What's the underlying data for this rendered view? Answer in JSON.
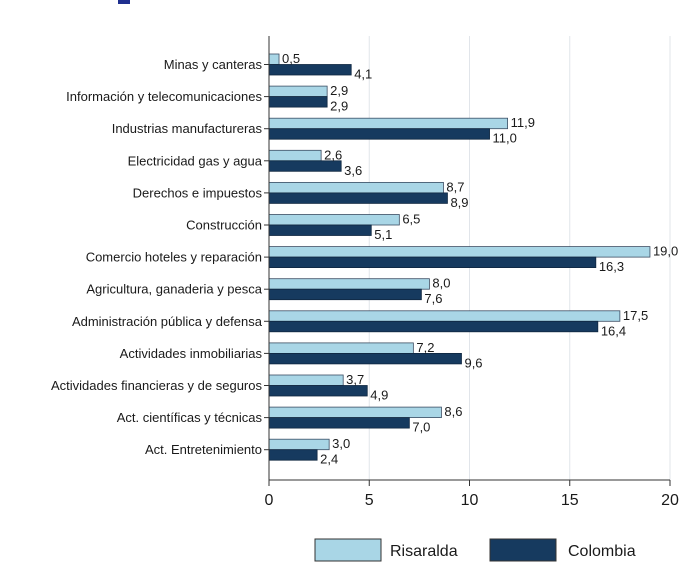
{
  "chart_data": {
    "type": "bar",
    "orientation": "horizontal",
    "categories": [
      "Minas y canteras",
      "Información y telecomunicaciones",
      "Industrias manufactureras",
      "Electricidad gas y agua",
      "Derechos e impuestos",
      "Construcción",
      "Comercio hoteles y reparación",
      "Agricultura, ganaderia y pesca",
      "Administración pública y defensa",
      "Actividades inmobiliarias",
      "Actividades financieras y de seguros",
      "Act. científicas y técnicas",
      "Act. Entretenimiento"
    ],
    "series": [
      {
        "name": "Risaralda",
        "color": "#a9d6e6",
        "values": [
          0.5,
          2.9,
          11.9,
          2.6,
          8.7,
          6.5,
          19.0,
          8.0,
          17.5,
          7.2,
          3.7,
          8.6,
          3.0
        ],
        "labels": [
          "0,5",
          "2,9",
          "11,9",
          "2,6",
          "8,7",
          "6,5",
          "19,0",
          "8,0",
          "17,5",
          "7,2",
          "3,7",
          "8,6",
          "3,0"
        ]
      },
      {
        "name": "Colombia",
        "color": "#163a5f",
        "values": [
          4.1,
          2.9,
          11.0,
          3.6,
          8.9,
          5.1,
          16.3,
          7.6,
          16.4,
          9.6,
          4.9,
          7.0,
          2.4
        ],
        "labels": [
          "4,1",
          "2,9",
          "11,0",
          "3,6",
          "8,9",
          "5,1",
          "16,3",
          "7,6",
          "16,4",
          "9,6",
          "4,9",
          "7,0",
          "2,4"
        ]
      }
    ],
    "x_ticks": [
      "0",
      "5",
      "10",
      "15",
      "20"
    ],
    "xlim": [
      0,
      20
    ],
    "grid": "vertical",
    "legend_position": "bottom",
    "title": "",
    "xlabel": "",
    "ylabel": ""
  }
}
